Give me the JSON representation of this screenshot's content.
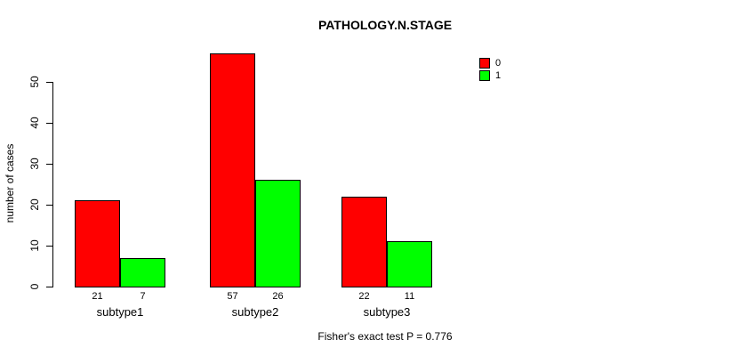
{
  "chart_data": {
    "type": "bar",
    "title": "PATHOLOGY.N.STAGE",
    "ylabel": "number of cases",
    "xlabel": "",
    "categories": [
      "subtype1",
      "subtype2",
      "subtype3"
    ],
    "series": [
      {
        "name": "0",
        "color": "#ff0000",
        "values": [
          21,
          57,
          22
        ]
      },
      {
        "name": "1",
        "color": "#00ff00",
        "values": [
          7,
          26,
          11
        ]
      }
    ],
    "bar_value_labels": [
      [
        "21",
        "7"
      ],
      [
        "57",
        "26"
      ],
      [
        "22",
        "11"
      ]
    ],
    "yticks": [
      0,
      10,
      20,
      30,
      40,
      50
    ],
    "ylim": [
      0,
      57
    ],
    "grid": false,
    "legend_position": "top-right",
    "annotation": "Fisher's exact test P = 0.776",
    "background_color": "#ffffff",
    "axis_color": "#000000"
  }
}
